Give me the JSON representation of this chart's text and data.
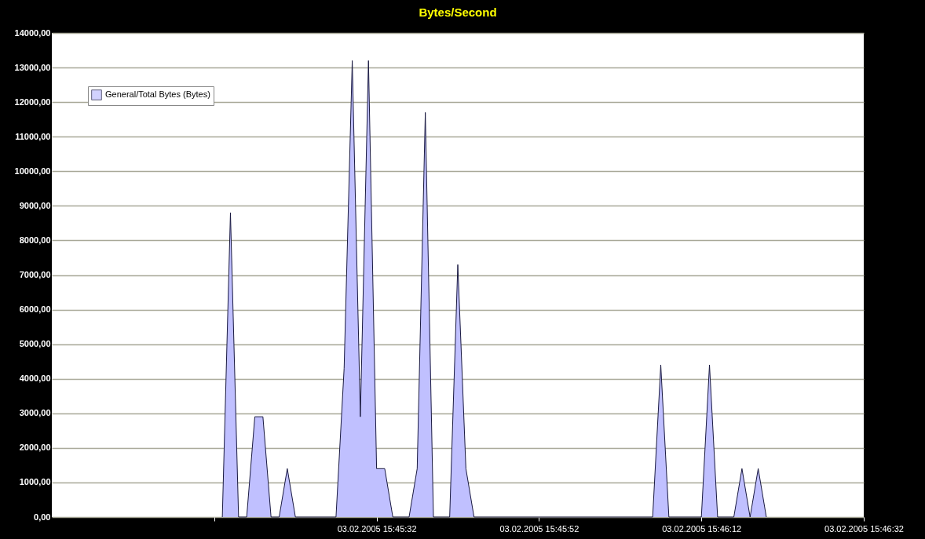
{
  "chart_data": {
    "type": "area",
    "title": "Bytes/Second",
    "x": [
      "2005-02-03T15:45:13",
      "2005-02-03T15:45:14",
      "2005-02-03T15:45:15",
      "2005-02-03T15:45:16",
      "2005-02-03T15:45:17",
      "2005-02-03T15:45:18",
      "2005-02-03T15:45:19",
      "2005-02-03T15:45:20",
      "2005-02-03T15:45:21",
      "2005-02-03T15:45:22",
      "2005-02-03T15:45:27",
      "2005-02-03T15:45:28",
      "2005-02-03T15:45:29",
      "2005-02-03T15:45:30",
      "2005-02-03T15:45:31",
      "2005-02-03T15:45:32",
      "2005-02-03T15:45:33",
      "2005-02-03T15:45:34",
      "2005-02-03T15:45:36",
      "2005-02-03T15:45:37",
      "2005-02-03T15:45:38",
      "2005-02-03T15:45:39",
      "2005-02-03T15:45:41",
      "2005-02-03T15:45:42",
      "2005-02-03T15:45:43",
      "2005-02-03T15:45:44",
      "2005-02-03T15:46:06",
      "2005-02-03T15:46:07",
      "2005-02-03T15:46:08",
      "2005-02-03T15:46:12",
      "2005-02-03T15:46:13",
      "2005-02-03T15:46:14",
      "2005-02-03T15:46:16",
      "2005-02-03T15:46:17",
      "2005-02-03T15:46:18",
      "2005-02-03T15:46:19",
      "2005-02-03T15:46:20"
    ],
    "series": [
      {
        "name": "General/Total Bytes (Bytes)",
        "color": "#c0c0ff",
        "values": [
          0,
          8800,
          0,
          0,
          2900,
          2900,
          0,
          0,
          1400,
          0,
          0,
          4300,
          13200,
          2900,
          13200,
          1400,
          1400,
          0,
          0,
          1400,
          11700,
          0,
          0,
          7300,
          1400,
          0,
          0,
          4400,
          0,
          0,
          4400,
          0,
          0,
          1400,
          0,
          1400,
          0
        ]
      }
    ],
    "xlim": [
      "2005-02-03T15:44:52",
      "2005-02-03T15:46:32"
    ],
    "xticks": [
      {
        "value": "2005-02-03T15:45:12",
        "label": null
      },
      {
        "value": "2005-02-03T15:45:32",
        "label": "03.02.2005 15:45:32"
      },
      {
        "value": "2005-02-03T15:45:52",
        "label": "03.02.2005 15:45:52"
      },
      {
        "value": "2005-02-03T15:46:12",
        "label": "03.02.2005 15:46:12"
      },
      {
        "value": "2005-02-03T15:46:32",
        "label": "03.02.2005 15:46:32"
      }
    ],
    "ylim": [
      0,
      14000
    ],
    "yticks": [
      {
        "value": 0,
        "label": "0,00"
      },
      {
        "value": 1000,
        "label": "1000,00"
      },
      {
        "value": 2000,
        "label": "2000,00"
      },
      {
        "value": 3000,
        "label": "3000,00"
      },
      {
        "value": 4000,
        "label": "4000,00"
      },
      {
        "value": 5000,
        "label": "5000,00"
      },
      {
        "value": 6000,
        "label": "6000,00"
      },
      {
        "value": 7000,
        "label": "7000,00"
      },
      {
        "value": 8000,
        "label": "8000,00"
      },
      {
        "value": 9000,
        "label": "9000,00"
      },
      {
        "value": 10000,
        "label": "10000,00"
      },
      {
        "value": 11000,
        "label": "11000,00"
      },
      {
        "value": 12000,
        "label": "12000,00"
      },
      {
        "value": 13000,
        "label": "13000,00"
      },
      {
        "value": 14000,
        "label": "14000,00"
      }
    ],
    "grid": "y",
    "legend": "top left"
  }
}
